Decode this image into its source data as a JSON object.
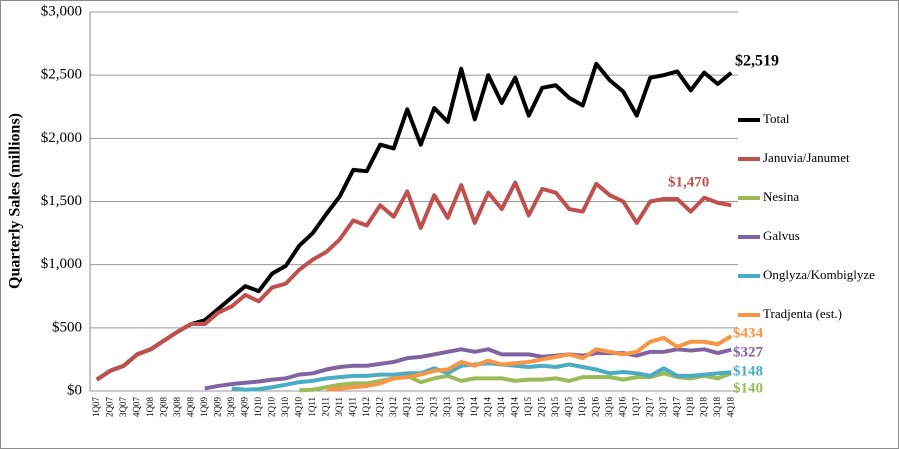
{
  "chart_data": {
    "type": "line",
    "y_label": "Quarterly Sales (millions)",
    "categories": [
      "1Q07",
      "2Q07",
      "3Q07",
      "4Q07",
      "1Q08",
      "2Q08",
      "3Q08",
      "4Q08",
      "1Q09",
      "2Q09",
      "3Q09",
      "4Q09",
      "1Q10",
      "2Q10",
      "3Q10",
      "4Q10",
      "1Q11",
      "2Q11",
      "3Q11",
      "4Q11",
      "1Q12",
      "2Q12",
      "3Q12",
      "4Q12",
      "1Q13",
      "2Q13",
      "3Q13",
      "4Q13",
      "1Q14",
      "2Q14",
      "3Q14",
      "4Q14",
      "1Q15",
      "2Q15",
      "3Q15",
      "4Q15",
      "1Q16",
      "2Q16",
      "3Q16",
      "4Q16",
      "1Q17",
      "2Q17",
      "3Q17",
      "4Q17",
      "1Q18",
      "2Q18",
      "3Q18",
      "4Q18"
    ],
    "ylim": [
      0,
      3000
    ],
    "yticks": [
      {
        "value": 0,
        "label": "$0"
      },
      {
        "value": 500,
        "label": "$500"
      },
      {
        "value": 1000,
        "label": "$1,000"
      },
      {
        "value": 1500,
        "label": "$1,500"
      },
      {
        "value": 2000,
        "label": "$2,000"
      },
      {
        "value": 2500,
        "label": "$2,500"
      },
      {
        "value": 3000,
        "label": "$3,000"
      }
    ],
    "grid": true,
    "legend": "right",
    "series": [
      {
        "name": "Total",
        "color": "#000000",
        "values": [
          90,
          160,
          200,
          290,
          330,
          400,
          470,
          530,
          560,
          650,
          740,
          830,
          790,
          930,
          990,
          1150,
          1250,
          1400,
          1540,
          1750,
          1740,
          1950,
          1920,
          2230,
          1950,
          2240,
          2130,
          2550,
          2150,
          2500,
          2280,
          2480,
          2180,
          2400,
          2420,
          2320,
          2260,
          2590,
          2460,
          2370,
          2180,
          2480,
          2500,
          2530,
          2380,
          2520,
          2430,
          2519
        ],
        "value_labels": [
          null,
          null,
          null,
          null,
          null,
          null,
          null,
          null,
          null,
          null,
          null,
          null,
          null,
          null,
          null,
          null,
          null,
          null,
          null,
          null,
          null,
          null,
          null,
          null,
          null,
          null,
          null,
          null,
          null,
          null,
          null,
          null,
          null,
          null,
          null,
          null,
          null,
          null,
          null,
          null,
          null,
          null,
          null,
          null,
          null,
          null,
          null,
          "$2,519"
        ]
      },
      {
        "name": "Januvia/Janumet",
        "color": "#c0504d",
        "values": [
          90,
          160,
          200,
          290,
          330,
          400,
          470,
          530,
          530,
          620,
          670,
          760,
          710,
          820,
          850,
          960,
          1040,
          1100,
          1200,
          1350,
          1310,
          1470,
          1380,
          1580,
          1290,
          1550,
          1370,
          1630,
          1330,
          1570,
          1440,
          1650,
          1390,
          1600,
          1570,
          1440,
          1420,
          1640,
          1550,
          1500,
          1330,
          1500,
          1520,
          1520,
          1420,
          1530,
          1490,
          1470
        ],
        "value_labels": [
          null,
          null,
          null,
          null,
          null,
          null,
          null,
          null,
          null,
          null,
          null,
          null,
          null,
          null,
          null,
          null,
          null,
          null,
          null,
          null,
          null,
          null,
          null,
          null,
          null,
          null,
          null,
          null,
          null,
          null,
          null,
          null,
          null,
          null,
          null,
          null,
          null,
          null,
          null,
          null,
          null,
          null,
          null,
          null,
          null,
          null,
          null,
          "$1,470"
        ]
      },
      {
        "name": "Nesina",
        "color": "#9bbb59",
        "values": [
          null,
          null,
          null,
          null,
          null,
          null,
          null,
          null,
          null,
          null,
          null,
          null,
          null,
          null,
          null,
          5,
          10,
          30,
          50,
          60,
          60,
          80,
          100,
          120,
          70,
          100,
          120,
          80,
          100,
          100,
          100,
          80,
          90,
          90,
          100,
          80,
          110,
          110,
          110,
          90,
          110,
          110,
          140,
          110,
          100,
          120,
          100,
          140
        ],
        "value_labels": [
          null,
          null,
          null,
          null,
          null,
          null,
          null,
          null,
          null,
          null,
          null,
          null,
          null,
          null,
          null,
          null,
          null,
          null,
          null,
          null,
          null,
          null,
          null,
          null,
          null,
          null,
          null,
          null,
          null,
          null,
          null,
          null,
          null,
          null,
          null,
          null,
          null,
          null,
          null,
          null,
          null,
          null,
          null,
          null,
          null,
          null,
          null,
          "$140"
        ]
      },
      {
        "name": "Galvus",
        "color": "#8064a2",
        "values": [
          null,
          null,
          null,
          null,
          null,
          null,
          null,
          null,
          20,
          40,
          55,
          65,
          75,
          90,
          100,
          130,
          140,
          170,
          190,
          200,
          200,
          215,
          230,
          260,
          270,
          290,
          310,
          330,
          310,
          330,
          290,
          290,
          290,
          270,
          280,
          290,
          280,
          300,
          300,
          300,
          280,
          310,
          310,
          330,
          320,
          330,
          300,
          327
        ],
        "value_labels": [
          null,
          null,
          null,
          null,
          null,
          null,
          null,
          null,
          null,
          null,
          null,
          null,
          null,
          null,
          null,
          null,
          null,
          null,
          null,
          null,
          null,
          null,
          null,
          null,
          null,
          null,
          null,
          null,
          null,
          null,
          null,
          null,
          null,
          null,
          null,
          null,
          null,
          null,
          null,
          null,
          null,
          null,
          null,
          null,
          null,
          null,
          null,
          "$327"
        ]
      },
      {
        "name": "Onglyza/Kombiglyze",
        "color": "#4bacc6",
        "values": [
          null,
          null,
          null,
          null,
          null,
          null,
          null,
          null,
          null,
          null,
          20,
          10,
          15,
          30,
          50,
          70,
          80,
          100,
          110,
          120,
          120,
          130,
          130,
          140,
          140,
          180,
          140,
          200,
          210,
          220,
          210,
          200,
          190,
          200,
          190,
          210,
          190,
          170,
          140,
          150,
          140,
          120,
          180,
          120,
          120,
          130,
          140,
          148
        ],
        "value_labels": [
          null,
          null,
          null,
          null,
          null,
          null,
          null,
          null,
          null,
          null,
          null,
          null,
          null,
          null,
          null,
          null,
          null,
          null,
          null,
          null,
          null,
          null,
          null,
          null,
          null,
          null,
          null,
          null,
          null,
          null,
          null,
          null,
          null,
          null,
          null,
          null,
          null,
          null,
          null,
          null,
          null,
          null,
          null,
          null,
          null,
          null,
          null,
          "$148"
        ]
      },
      {
        "name": "Tradjenta (est.)",
        "color": "#f79646",
        "values": [
          null,
          null,
          null,
          null,
          null,
          null,
          null,
          null,
          null,
          null,
          null,
          null,
          null,
          null,
          null,
          null,
          null,
          10,
          20,
          30,
          40,
          60,
          100,
          110,
          130,
          160,
          170,
          230,
          200,
          240,
          210,
          220,
          230,
          250,
          270,
          290,
          260,
          330,
          310,
          290,
          310,
          390,
          420,
          350,
          390,
          390,
          370,
          434
        ],
        "value_labels": [
          null,
          null,
          null,
          null,
          null,
          null,
          null,
          null,
          null,
          null,
          null,
          null,
          null,
          null,
          null,
          null,
          null,
          null,
          null,
          null,
          null,
          null,
          null,
          null,
          null,
          null,
          null,
          null,
          null,
          null,
          null,
          null,
          null,
          null,
          null,
          null,
          null,
          null,
          null,
          null,
          null,
          null,
          null,
          null,
          null,
          null,
          null,
          "$434"
        ]
      }
    ]
  }
}
